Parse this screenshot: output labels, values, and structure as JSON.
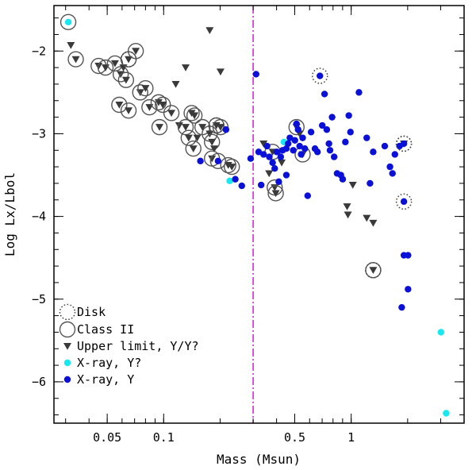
{
  "chart_data": {
    "type": "scatter",
    "title": "",
    "xlabel": "Mass (Msun)",
    "ylabel": "Log Lx/Lbol",
    "x_scale": "log",
    "xlim": [
      0.026,
      4.0
    ],
    "ylim": [
      -6.5,
      -1.45
    ],
    "x_ticks": [
      {
        "value": 0.05,
        "label": "0.05"
      },
      {
        "value": 0.1,
        "label": "0.1"
      },
      {
        "value": 0.5,
        "label": "0.5"
      },
      {
        "value": 1,
        "label": "1"
      }
    ],
    "y_ticks": [
      {
        "value": -2,
        "label": "−2"
      },
      {
        "value": -3,
        "label": "−3"
      },
      {
        "value": -4,
        "label": "−4"
      },
      {
        "value": -5,
        "label": "−5"
      },
      {
        "value": -6,
        "label": "−6"
      }
    ],
    "vertical_line": {
      "x": 0.3,
      "style": "dash-dot",
      "color": "#e000e0"
    },
    "colors": {
      "xray_y": "#0a10d8",
      "xray_y_maybe": "#18e8f0",
      "upper_limit": "#3a3a3a",
      "ring": "#555555",
      "vline": "#e000e0"
    },
    "legend": [
      {
        "marker": "disk",
        "label": "Disk"
      },
      {
        "marker": "class2",
        "label": "Class II"
      },
      {
        "marker": "upper_limit",
        "label": "Upper limit, Y/Y?"
      },
      {
        "marker": "xray_y_maybe",
        "label": "X-ray, Y?"
      },
      {
        "marker": "xray_y",
        "label": "X-ray, Y"
      }
    ],
    "series": [
      {
        "name": "Upper limit, Y/Y?",
        "marker": "triangle-down",
        "points": [
          {
            "x": 0.032,
            "y": -1.93
          },
          {
            "x": 0.034,
            "y": -2.1,
            "class2": true
          },
          {
            "x": 0.045,
            "y": -2.18,
            "class2": true
          },
          {
            "x": 0.049,
            "y": -2.2,
            "class2": true
          },
          {
            "x": 0.055,
            "y": -2.15,
            "class2": true
          },
          {
            "x": 0.059,
            "y": -2.28,
            "class2": true
          },
          {
            "x": 0.061,
            "y": -2.2
          },
          {
            "x": 0.063,
            "y": -2.35,
            "class2": true
          },
          {
            "x": 0.065,
            "y": -2.1,
            "class2": true,
            "disk": true
          },
          {
            "x": 0.071,
            "y": -2.0,
            "class2": true
          },
          {
            "x": 0.075,
            "y": -2.5,
            "class2": true
          },
          {
            "x": 0.08,
            "y": -2.45,
            "class2": true
          },
          {
            "x": 0.058,
            "y": -2.65,
            "class2": true
          },
          {
            "x": 0.065,
            "y": -2.72,
            "class2": true
          },
          {
            "x": 0.084,
            "y": -2.68,
            "class2": true
          },
          {
            "x": 0.094,
            "y": -2.62,
            "class2": true
          },
          {
            "x": 0.099,
            "y": -2.65,
            "class2": true
          },
          {
            "x": 0.095,
            "y": -2.92,
            "class2": true
          },
          {
            "x": 0.11,
            "y": -2.75,
            "class2": true
          },
          {
            "x": 0.121,
            "y": -2.9
          },
          {
            "x": 0.131,
            "y": -2.92,
            "class2": true
          },
          {
            "x": 0.141,
            "y": -2.75,
            "class2": true
          },
          {
            "x": 0.146,
            "y": -2.78,
            "class2": true
          },
          {
            "x": 0.136,
            "y": -3.05,
            "class2": true
          },
          {
            "x": 0.151,
            "y": -3.05
          },
          {
            "x": 0.144,
            "y": -3.18,
            "class2": true
          },
          {
            "x": 0.161,
            "y": -2.92,
            "class2": true
          },
          {
            "x": 0.176,
            "y": -3.0,
            "class2": true
          },
          {
            "x": 0.191,
            "y": -2.9,
            "class2": true,
            "disk": true
          },
          {
            "x": 0.181,
            "y": -3.1,
            "class2": true
          },
          {
            "x": 0.186,
            "y": -3.18
          },
          {
            "x": 0.181,
            "y": -3.3,
            "class2": true
          },
          {
            "x": 0.201,
            "y": -2.92,
            "class2": true
          },
          {
            "x": 0.221,
            "y": -3.38,
            "class2": true
          },
          {
            "x": 0.231,
            "y": -3.4,
            "class2": true
          },
          {
            "x": 0.176,
            "y": -1.75
          },
          {
            "x": 0.116,
            "y": -2.4
          },
          {
            "x": 0.131,
            "y": -2.2
          },
          {
            "x": 0.201,
            "y": -2.25
          },
          {
            "x": 0.341,
            "y": -3.12
          },
          {
            "x": 0.365,
            "y": -3.48
          },
          {
            "x": 0.381,
            "y": -3.22,
            "class2": true
          },
          {
            "x": 0.391,
            "y": -3.65,
            "class2": true
          },
          {
            "x": 0.396,
            "y": -3.72,
            "class2": true
          },
          {
            "x": 0.426,
            "y": -3.35
          },
          {
            "x": 0.511,
            "y": -2.92,
            "class2": true
          },
          {
            "x": 0.531,
            "y": -3.0
          },
          {
            "x": 0.551,
            "y": -3.25,
            "class2": true
          },
          {
            "x": 1.02,
            "y": -3.62
          },
          {
            "x": 0.951,
            "y": -3.88
          },
          {
            "x": 0.961,
            "y": -3.98
          },
          {
            "x": 1.21,
            "y": -4.02
          },
          {
            "x": 1.31,
            "y": -4.08
          },
          {
            "x": 1.31,
            "y": -4.65,
            "class2": true,
            "disk": true
          },
          {
            "x": 1.91,
            "y": -3.12,
            "disk": true
          }
        ]
      },
      {
        "name": "X-ray, Y?",
        "marker": "cyan-dot",
        "points": [
          {
            "x": 0.031,
            "y": -1.65,
            "class2": true
          },
          {
            "x": 0.225,
            "y": -3.57
          },
          {
            "x": 0.438,
            "y": -3.1
          },
          {
            "x": 3.01,
            "y": -5.4
          },
          {
            "x": 3.21,
            "y": -6.38
          }
        ]
      },
      {
        "name": "X-ray, Y",
        "marker": "blue-dot",
        "points": [
          {
            "x": 0.157,
            "y": -3.33
          },
          {
            "x": 0.195,
            "y": -3.33,
            "class2": true
          },
          {
            "x": 0.215,
            "y": -2.95
          },
          {
            "x": 0.241,
            "y": -3.55
          },
          {
            "x": 0.261,
            "y": -3.63
          },
          {
            "x": 0.291,
            "y": -3.3
          },
          {
            "x": 0.311,
            "y": -2.28
          },
          {
            "x": 0.321,
            "y": -3.22
          },
          {
            "x": 0.331,
            "y": -3.62
          },
          {
            "x": 0.341,
            "y": -3.25
          },
          {
            "x": 0.356,
            "y": -3.15
          },
          {
            "x": 0.366,
            "y": -3.28
          },
          {
            "x": 0.381,
            "y": -3.35
          },
          {
            "x": 0.391,
            "y": -3.42
          },
          {
            "x": 0.401,
            "y": -3.22
          },
          {
            "x": 0.411,
            "y": -3.58
          },
          {
            "x": 0.421,
            "y": -3.28
          },
          {
            "x": 0.431,
            "y": -3.2
          },
          {
            "x": 0.451,
            "y": -3.18
          },
          {
            "x": 0.451,
            "y": -3.5
          },
          {
            "x": 0.461,
            "y": -3.12
          },
          {
            "x": 0.471,
            "y": -3.05
          },
          {
            "x": 0.491,
            "y": -3.2
          },
          {
            "x": 0.501,
            "y": -3.08
          },
          {
            "x": 0.511,
            "y": -2.88
          },
          {
            "x": 0.521,
            "y": -2.95
          },
          {
            "x": 0.531,
            "y": -3.15
          },
          {
            "x": 0.541,
            "y": -3.25
          },
          {
            "x": 0.551,
            "y": -3.05
          },
          {
            "x": 0.566,
            "y": -3.18
          },
          {
            "x": 0.586,
            "y": -3.75
          },
          {
            "x": 0.611,
            "y": -2.98
          },
          {
            "x": 0.641,
            "y": -3.18
          },
          {
            "x": 0.661,
            "y": -3.22
          },
          {
            "x": 0.681,
            "y": -2.3,
            "disk": true
          },
          {
            "x": 0.701,
            "y": -2.9
          },
          {
            "x": 0.721,
            "y": -2.52
          },
          {
            "x": 0.741,
            "y": -2.95
          },
          {
            "x": 0.761,
            "y": -3.12
          },
          {
            "x": 0.771,
            "y": -3.2
          },
          {
            "x": 0.791,
            "y": -2.8
          },
          {
            "x": 0.811,
            "y": -3.28
          },
          {
            "x": 0.841,
            "y": -3.48
          },
          {
            "x": 0.881,
            "y": -3.5
          },
          {
            "x": 0.901,
            "y": -3.55
          },
          {
            "x": 0.931,
            "y": -3.1
          },
          {
            "x": 0.971,
            "y": -2.78
          },
          {
            "x": 0.991,
            "y": -2.98
          },
          {
            "x": 1.1,
            "y": -2.5
          },
          {
            "x": 1.21,
            "y": -3.05
          },
          {
            "x": 1.26,
            "y": -3.6
          },
          {
            "x": 1.31,
            "y": -3.22
          },
          {
            "x": 1.51,
            "y": -3.15
          },
          {
            "x": 1.61,
            "y": -3.4
          },
          {
            "x": 1.66,
            "y": -3.48
          },
          {
            "x": 1.71,
            "y": -3.25
          },
          {
            "x": 1.81,
            "y": -3.15
          },
          {
            "x": 1.91,
            "y": -3.12,
            "disk": true
          },
          {
            "x": 1.91,
            "y": -3.82,
            "disk": true
          },
          {
            "x": 1.86,
            "y": -5.1
          },
          {
            "x": 1.91,
            "y": -4.47
          },
          {
            "x": 2.01,
            "y": -4.47
          },
          {
            "x": 2.01,
            "y": -4.88
          }
        ]
      }
    ]
  }
}
